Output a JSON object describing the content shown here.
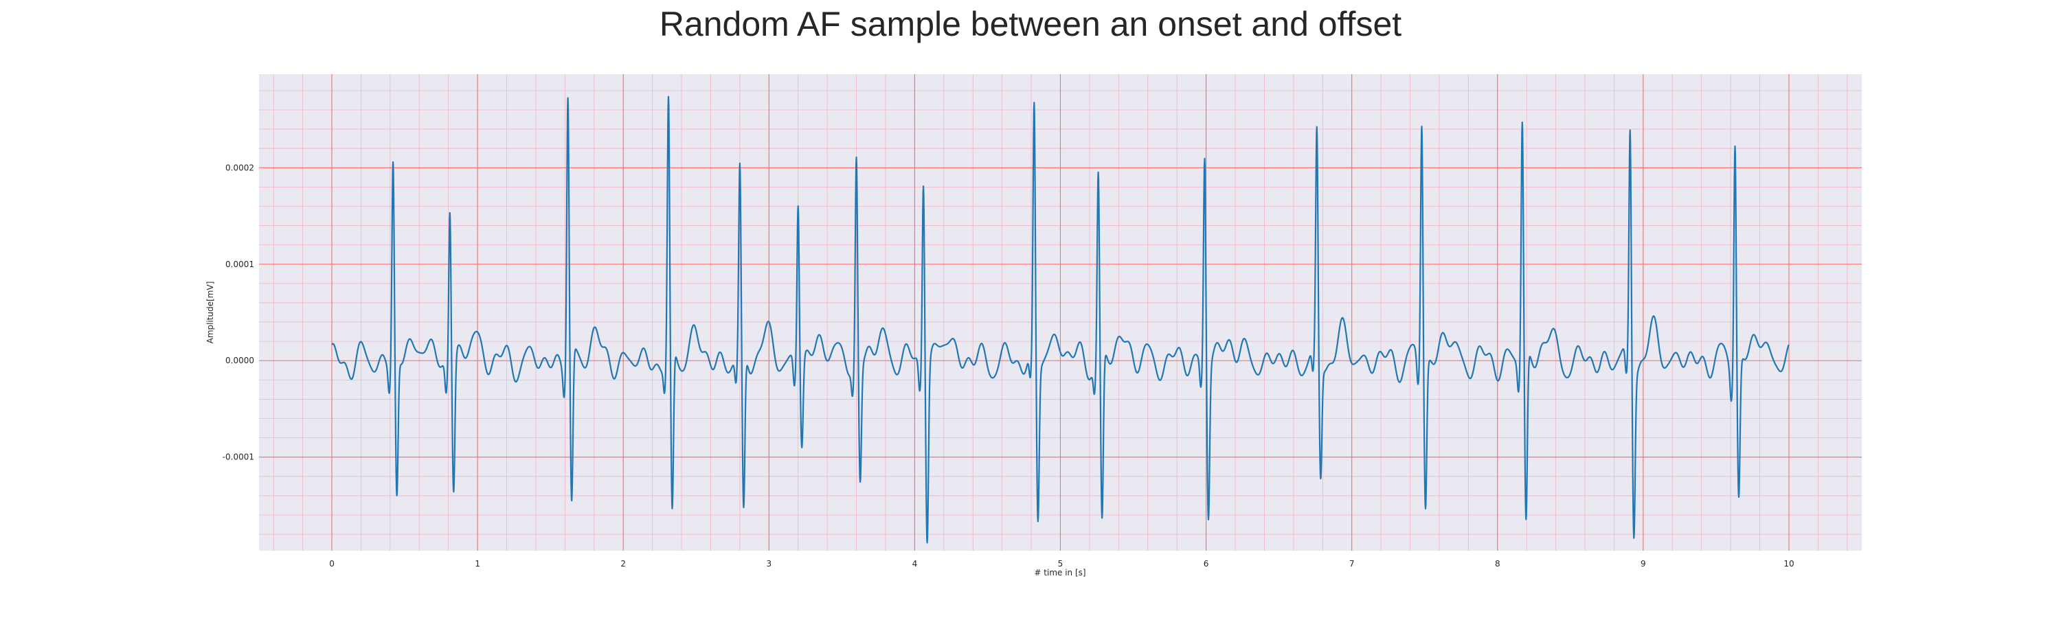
{
  "chart_data": {
    "type": "line",
    "title": "Random AF sample between an onset and offset",
    "xlabel": "# time in [s]",
    "ylabel": "Amplitude[mV]",
    "xlim": [
      -0.5,
      10.5
    ],
    "ylim": [
      -0.000197,
      0.000297
    ],
    "x_ticks": [
      0,
      1,
      2,
      3,
      4,
      5,
      6,
      7,
      8,
      9,
      10
    ],
    "x_tick_labels": [
      "0",
      "1",
      "2",
      "3",
      "4",
      "5",
      "6",
      "7",
      "8",
      "9",
      "10"
    ],
    "y_ticks": [
      -0.0001,
      0.0,
      0.0001,
      0.0002
    ],
    "y_tick_labels": [
      "-0.0001",
      "0.0000",
      "0.0001",
      "0.0002"
    ],
    "grid": {
      "major": true,
      "minor": true,
      "major_color": "#ff6b6b",
      "minor_color": "#f2b3c2"
    },
    "background": "#eae9f2",
    "line_color": "#1f77b4",
    "series": [
      {
        "name": "",
        "sampling": {
          "x_start": 0,
          "x_end": 10,
          "step": 0.02
        },
        "beats": [
          {
            "t": 0.42,
            "r": 0.000205,
            "s": -0.000145
          },
          {
            "t": 0.81,
            "r": 0.000168,
            "s": -0.000132
          },
          {
            "t": 1.62,
            "r": 0.000274,
            "s": -0.00016
          },
          {
            "t": 2.31,
            "r": 0.00026,
            "s": -0.000175
          },
          {
            "t": 2.8,
            "r": 0.00019,
            "s": -0.000168
          },
          {
            "t": 3.2,
            "r": 0.00017,
            "s": -8.7e-05
          },
          {
            "t": 3.6,
            "r": 0.000212,
            "s": -0.000123
          },
          {
            "t": 4.06,
            "r": 0.000202,
            "s": -0.000175
          },
          {
            "t": 4.82,
            "r": 0.000262,
            "s": -0.000162
          },
          {
            "t": 5.26,
            "r": 0.000193,
            "s": -0.000175
          },
          {
            "t": 5.99,
            "r": 0.000216,
            "s": -0.000158
          },
          {
            "t": 6.76,
            "r": 0.000226,
            "s": -0.000122
          },
          {
            "t": 7.48,
            "r": 0.000255,
            "s": -0.000148
          },
          {
            "t": 8.17,
            "r": 0.000252,
            "s": -0.000173
          },
          {
            "t": 8.91,
            "r": 0.000241,
            "s": -0.000168
          },
          {
            "t": 9.63,
            "r": 0.00024,
            "s": -0.00014
          }
        ]
      }
    ]
  }
}
